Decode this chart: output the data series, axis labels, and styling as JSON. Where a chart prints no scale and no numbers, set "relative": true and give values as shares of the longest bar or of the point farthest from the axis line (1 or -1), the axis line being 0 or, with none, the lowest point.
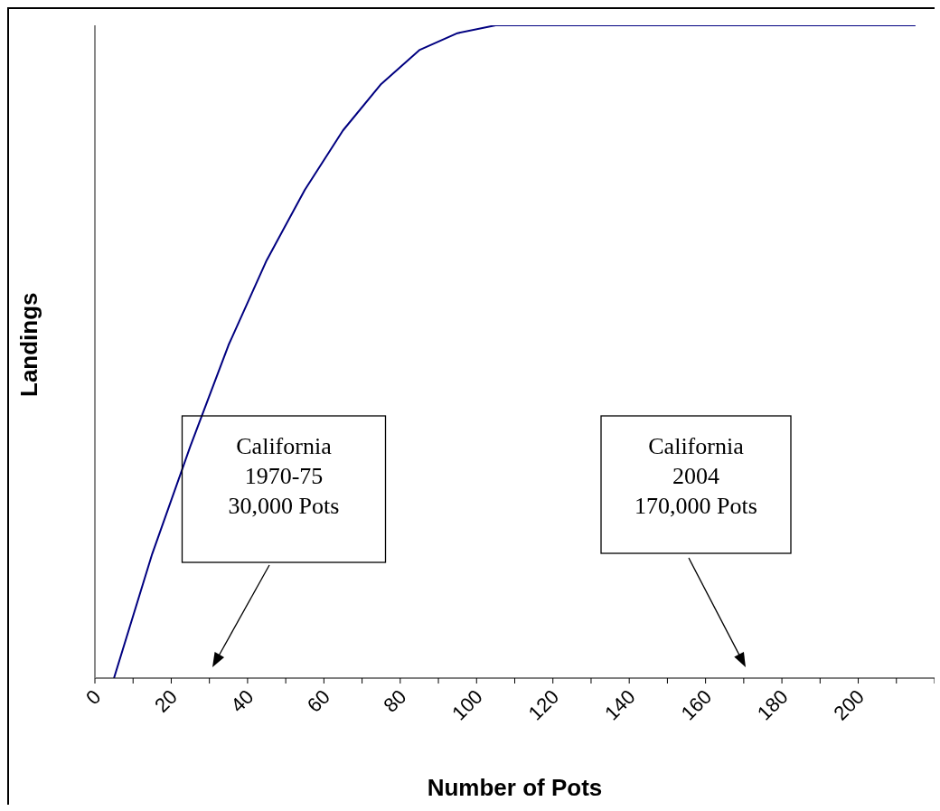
{
  "chart_data": {
    "type": "line",
    "xlabel": "Number of Pots",
    "ylabel": "Landings",
    "relative": true,
    "x": [
      5,
      15,
      25,
      35,
      45,
      55,
      65,
      75,
      85,
      95,
      105,
      115,
      125,
      135,
      145,
      155,
      165,
      175,
      185,
      195,
      205,
      215
    ],
    "series": [
      {
        "color": "#000080",
        "values": [
          0,
          0.19,
          0.355,
          0.51,
          0.64,
          0.748,
          0.839,
          0.91,
          0.962,
          0.988,
          1,
          1,
          1,
          1,
          1,
          1,
          1,
          1,
          1,
          1,
          1,
          1
        ]
      }
    ],
    "xlim": [
      0,
      220
    ],
    "xticks": [
      0,
      {
        "value": 10,
        "label": null
      },
      20,
      {
        "value": 30,
        "label": null
      },
      40,
      {
        "value": 50,
        "label": null
      },
      60,
      {
        "value": 70,
        "label": null
      },
      80,
      {
        "value": 90,
        "label": null
      },
      100,
      {
        "value": 110,
        "label": null
      },
      120,
      {
        "value": 130,
        "label": null
      },
      140,
      {
        "value": 150,
        "label": null
      },
      160,
      {
        "value": 170,
        "label": null
      },
      180,
      {
        "value": 190,
        "label": null
      },
      200,
      {
        "value": 210,
        "label": null
      },
      {
        "value": 220,
        "label": null
      }
    ],
    "grid": false,
    "marker": "none",
    "line_style": "solid",
    "annotations": [
      "California\n1970-75\n30,000 Pots",
      "California\n2004\n170,000 Pots"
    ]
  }
}
